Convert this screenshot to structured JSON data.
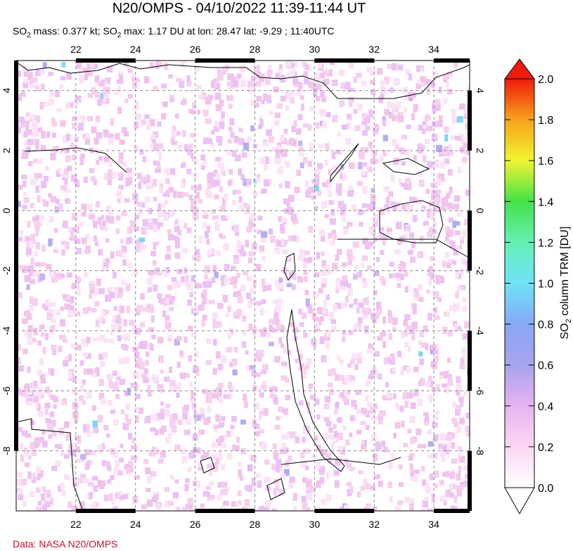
{
  "title": "N20/OMPS - 04/10/2022 11:39-11:44 UT",
  "subtitle_parts": [
    "SO",
    "2",
    " mass: 0.377 kt; SO",
    "2",
    " max: 1.17 DU at lon: 28.47 lat: -9.29 ; 11:40UTC"
  ],
  "map": {
    "xlim": [
      20,
      35.2
    ],
    "ylim": [
      -10,
      5
    ],
    "xticks": [
      22,
      24,
      26,
      28,
      30,
      32,
      34
    ],
    "yticks": [
      4,
      2,
      0,
      -2,
      -4,
      -6,
      -8
    ]
  },
  "colorbar": {
    "lim": [
      0,
      2
    ],
    "ticks": [
      {
        "value": 0,
        "label": "0.0"
      },
      {
        "value": 0.2,
        "label": "0.2"
      },
      {
        "value": 0.4,
        "label": "0.4"
      },
      {
        "value": 0.6,
        "label": "0.6"
      },
      {
        "value": 0.8,
        "label": "0.8"
      },
      {
        "value": 1,
        "label": "1.0"
      },
      {
        "value": 1.2,
        "label": "1.2"
      },
      {
        "value": 1.4,
        "label": "1.4"
      },
      {
        "value": 1.6,
        "label": "1.6"
      },
      {
        "value": 1.8,
        "label": "1.8"
      },
      {
        "value": 2,
        "label": "2.0"
      }
    ],
    "label_parts": [
      "SO",
      "2",
      " column TRM [DU]"
    ]
  },
  "credit": "Data: NASA N20/OMPS"
}
